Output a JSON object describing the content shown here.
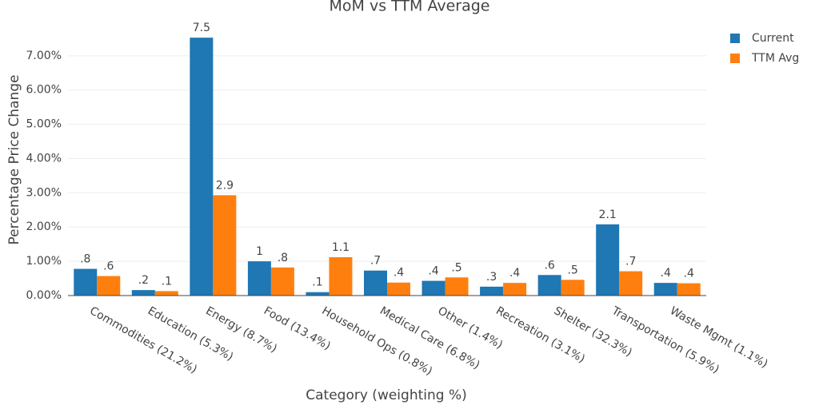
{
  "chart_data": {
    "type": "bar",
    "title": "MoM vs TTM Average",
    "x_label": "Category (weighting %)",
    "y_label": "Percentage Price Change",
    "categories": [
      "Commodities (21.2%)",
      "Education (5.3%)",
      "Energy (8.7%)",
      "Food (13.4%)",
      "Household Ops (0.8%)",
      "Medical Care (6.8%)",
      "Other (1.4%)",
      "Recreation (3.1%)",
      "Shelter (32.3%)",
      "Transportation (5.9%)",
      "Waste Mgmt (1.1%)"
    ],
    "series": [
      {
        "name": "Current",
        "color": "#1f77b4",
        "values": [
          0.78,
          0.16,
          7.53,
          1.0,
          0.1,
          0.73,
          0.43,
          0.26,
          0.6,
          2.08,
          0.37
        ],
        "value_labels": [
          ".8",
          ".2",
          "7.5",
          "1",
          ".1",
          ".7",
          ".4",
          ".3",
          ".6",
          "2.1",
          ".4"
        ]
      },
      {
        "name": "TTM Avg",
        "color": "#ff7f0e",
        "values": [
          0.57,
          0.13,
          2.93,
          0.82,
          1.12,
          0.38,
          0.53,
          0.37,
          0.46,
          0.71,
          0.36
        ],
        "value_labels": [
          ".6",
          ".1",
          "2.9",
          ".8",
          "1.1",
          ".4",
          ".5",
          ".4",
          ".5",
          ".7",
          ".4"
        ]
      }
    ],
    "ylim": [
      0,
      7.58
    ],
    "yticks": [
      {
        "value": 0,
        "label": "0.00%"
      },
      {
        "value": 1,
        "label": "1.00%"
      },
      {
        "value": 2,
        "label": "2.00%"
      },
      {
        "value": 3,
        "label": "3.00%"
      },
      {
        "value": 4,
        "label": "4.00%"
      },
      {
        "value": 5,
        "label": "5.00%"
      },
      {
        "value": 6,
        "label": "6.00%"
      },
      {
        "value": 7,
        "label": "7.00%"
      }
    ],
    "grid": true
  }
}
